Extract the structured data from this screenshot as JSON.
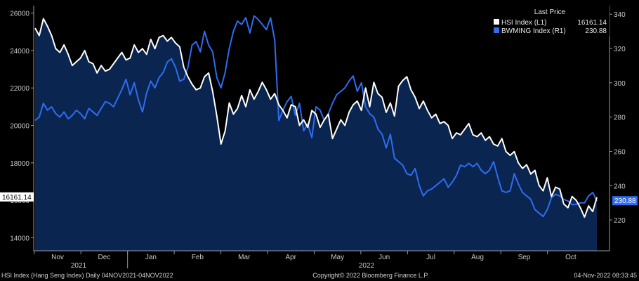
{
  "chart_data": {
    "type": "line",
    "colors": {
      "background": "#000000",
      "area_fill": "#0a2550",
      "hsi_line": "#ffffff",
      "bwming_line": "#2f6cf0",
      "axis": "#9a9a9a"
    },
    "left_axis": {
      "ylim": [
        13300,
        26400
      ],
      "ticks": [
        "14000",
        "16000",
        "18000",
        "20000",
        "22000",
        "24000",
        "26000"
      ]
    },
    "right_axis": {
      "ylim": [
        202,
        345
      ],
      "ticks": [
        "220",
        "240",
        "260",
        "280",
        "300",
        "320",
        "340"
      ]
    },
    "months": [
      "Nov",
      "Dec",
      "Jan",
      "Feb",
      "Mar",
      "Apr",
      "May",
      "Jun",
      "Jul",
      "Aug",
      "Sep",
      "Oct"
    ],
    "years": [
      "2021",
      "2022"
    ],
    "legend": {
      "title": "Last Price",
      "entries": [
        {
          "name": "HSI Index  (L1)",
          "value": "16161.14",
          "color": "#ffffff"
        },
        {
          "name": "BWMING Index  (R1)",
          "value": "230.88",
          "color": "#2f6cf0"
        }
      ]
    },
    "last_value_tags": {
      "left": "16161.14",
      "right": "230.88"
    },
    "series": [
      {
        "name": "HSI Index (L1)",
        "axis": "left",
        "values": [
          25200,
          24800,
          25700,
          25300,
          24800,
          24100,
          23900,
          24300,
          23800,
          23200,
          23400,
          23600,
          24000,
          23400,
          23300,
          22800,
          23200,
          22900,
          23000,
          23300,
          23600,
          23900,
          23500,
          23600,
          24300,
          23900,
          24100,
          23800,
          24600,
          24100,
          24700,
          24800,
          24500,
          24700,
          24400,
          24200,
          23100,
          22600,
          22200,
          21900,
          22000,
          22600,
          22800,
          21800,
          20500,
          19000,
          19700,
          21200,
          20600,
          20900,
          21600,
          21000,
          21900,
          21400,
          21800,
          22300,
          21900,
          21400,
          21700,
          21100,
          20800,
          20400,
          21100,
          21000,
          20000,
          20300,
          19900,
          20800,
          20600,
          19900,
          20300,
          20600,
          19300,
          19800,
          20300,
          20000,
          20700,
          21100,
          21300,
          20800,
          22000,
          21000,
          22300,
          21700,
          21500,
          20700,
          21200,
          20500,
          22100,
          22400,
          22600,
          21900,
          21500,
          20900,
          21300,
          20800,
          20400,
          20600,
          20100,
          20200,
          20000,
          19300,
          19600,
          19500,
          19800,
          20100,
          19500,
          19400,
          19600,
          19200,
          19400,
          19000,
          18900,
          19300,
          18600,
          18400,
          18600,
          18000,
          17700,
          17900,
          17400,
          17600,
          16800,
          16500,
          17200,
          16200,
          16700,
          16600,
          15800,
          15600,
          16200,
          16000,
          15600,
          15100,
          15700,
          15400,
          16161
        ]
      },
      {
        "name": "BWMING Index (R1)",
        "axis": "right",
        "values": [
          278,
          280,
          288,
          284,
          286,
          282,
          280,
          283,
          279,
          281,
          284,
          282,
          279,
          285,
          283,
          281,
          285,
          289,
          288,
          286,
          291,
          296,
          302,
          293,
          300,
          290,
          283,
          294,
          301,
          297,
          303,
          306,
          312,
          314,
          309,
          301,
          302,
          309,
          322,
          324,
          318,
          330,
          322,
          318,
          303,
          297,
          306,
          320,
          330,
          336,
          334,
          338,
          329,
          339,
          337,
          334,
          331,
          338,
          325,
          278,
          284,
          289,
          292,
          281,
          288,
          272,
          276,
          268,
          286,
          284,
          278,
          282,
          288,
          293,
          295,
          297,
          301,
          304,
          295,
          300,
          286,
          282,
          280,
          273,
          270,
          262,
          270,
          256,
          254,
          252,
          247,
          246,
          250,
          240,
          234,
          237,
          238,
          240,
          242,
          244,
          239,
          242,
          246,
          252,
          251,
          253,
          251,
          253,
          249,
          247,
          249,
          254,
          245,
          237,
          236,
          237,
          247,
          241,
          236,
          234,
          232,
          226,
          224,
          222,
          226,
          233,
          235,
          234,
          232,
          231,
          229,
          229,
          230,
          230,
          234,
          236,
          231
        ]
      }
    ]
  },
  "footer": {
    "left": "HSI Index (Hang Seng Index)  Daily 04NOV2021-04NOV2022",
    "center": "Copyright© 2022 Bloomberg Finance L.P.",
    "right": "04-Nov-2022 08:33:45"
  }
}
